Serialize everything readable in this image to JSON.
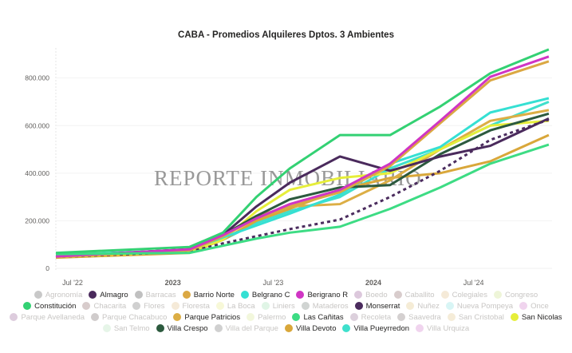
{
  "chart_data": {
    "type": "line",
    "title": "CABA - Promedios Alquileres Dptos. 3 Ambientes",
    "watermark": "REPORTE INMOBILIARIO",
    "xlabel": "",
    "ylabel": "",
    "x_unit": "months since Jan 2022",
    "x": [
      5,
      13,
      15,
      17,
      19,
      22,
      25,
      28,
      31,
      34.5
    ],
    "xlim": [
      4.9,
      34.6
    ],
    "x_ticks": [
      {
        "m": 6,
        "label": "Jul '22"
      },
      {
        "m": 12,
        "label": "2023"
      },
      {
        "m": 18,
        "label": "Jul '23"
      },
      {
        "m": 24,
        "label": "2024"
      },
      {
        "m": 30,
        "label": "Jul '24"
      }
    ],
    "ylim": [
      0,
      960000
    ],
    "y_ticks": [
      {
        "v": 0,
        "label": "0"
      },
      {
        "v": 200000,
        "label": "200.000"
      },
      {
        "v": 400000,
        "label": "400.000"
      },
      {
        "v": 600000,
        "label": "600.000"
      },
      {
        "v": 800000,
        "label": "800.000"
      }
    ],
    "grid": true,
    "legend_placement": "bottom",
    "series": [
      {
        "name": "Villa Pueyrredon",
        "color": "#3fe0cc",
        "values": [
          55000,
          78000,
          120000,
          190000,
          240000,
          300000,
          420000,
          500000,
          600000,
          700000
        ]
      },
      {
        "name": "Villa Devoto",
        "color": "#d9a73a",
        "values": [
          45000,
          65000,
          120000,
          200000,
          250000,
          330000,
          380000,
          400000,
          450000,
          560000
        ]
      },
      {
        "name": "Parque Patricios",
        "color": "#dcae45",
        "values": [
          50000,
          75000,
          140000,
          220000,
          260000,
          270000,
          370000,
          500000,
          620000,
          665000
        ]
      },
      {
        "name": "San Nicolas",
        "color": "#e6ee3a",
        "values": [
          48000,
          70000,
          120000,
          240000,
          330000,
          380000,
          400000,
          500000,
          600000,
          620000
        ]
      },
      {
        "name": "Monserrat",
        "color": "#4b2c5e",
        "dashed": true,
        "values": [
          48000,
          70000,
          105000,
          135000,
          165000,
          205000,
          300000,
          410000,
          540000,
          625000
        ]
      },
      {
        "name": "Belgrano C",
        "color": "#35e0d3",
        "values": [
          55000,
          78000,
          130000,
          180000,
          230000,
          310000,
          440000,
          510000,
          655000,
          715000
        ]
      },
      {
        "name": "Villa Crespo",
        "color": "#2c5a3e",
        "values": [
          50000,
          80000,
          140000,
          220000,
          290000,
          340000,
          350000,
          480000,
          580000,
          650000
        ]
      },
      {
        "name": "Almagro",
        "color": "#4a2a5c",
        "values": [
          50000,
          80000,
          140000,
          260000,
          360000,
          470000,
          410000,
          470000,
          515000,
          630000
        ]
      },
      {
        "name": "Barrio Norte",
        "color": "#dba843",
        "values": [
          48000,
          75000,
          135000,
          210000,
          260000,
          320000,
          430000,
          610000,
          790000,
          870000
        ]
      },
      {
        "name": "Berigrano R",
        "color": "#d035c4",
        "values": [
          50000,
          80000,
          140000,
          210000,
          270000,
          330000,
          440000,
          620000,
          805000,
          890000
        ]
      },
      {
        "name": "Las Cañitas",
        "color": "#3ddc84",
        "values": [
          60000,
          65000,
          95000,
          125000,
          150000,
          175000,
          250000,
          340000,
          440000,
          520000
        ]
      },
      {
        "name": "Constitución",
        "color": "#33d173",
        "values": [
          65000,
          90000,
          150000,
          300000,
          420000,
          560000,
          560000,
          680000,
          820000,
          920000
        ]
      }
    ]
  },
  "legend": {
    "rows": [
      [
        {
          "name": "Agronomía",
          "color": "#c8c8c8",
          "hl": false
        },
        {
          "name": "Almagro",
          "color": "#4a2a5c",
          "hl": true
        },
        {
          "name": "Barracas",
          "color": "#c0c0c0",
          "hl": false
        },
        {
          "name": "Barrio Norte",
          "color": "#dba843",
          "hl": true
        },
        {
          "name": "Belgrano C",
          "color": "#35e0d3",
          "hl": true
        },
        {
          "name": "Berigrano R",
          "color": "#d035c4",
          "hl": true
        },
        {
          "name": "Boedo",
          "color": "#dcc8dc",
          "hl": false
        },
        {
          "name": "Caballito",
          "color": "#d8cccc",
          "hl": false
        },
        {
          "name": "Colegiales",
          "color": "#f5ead8",
          "hl": false
        },
        {
          "name": "Congreso",
          "color": "#eef5d8",
          "hl": false
        }
      ],
      [
        {
          "name": "Constitución",
          "color": "#33d173",
          "hl": true
        },
        {
          "name": "Chacarita",
          "color": "#d8cccc",
          "hl": false
        },
        {
          "name": "Flores",
          "color": "#d0d0d0",
          "hl": false
        },
        {
          "name": "Floresta",
          "color": "#f5ead8",
          "hl": false
        },
        {
          "name": "La Boca",
          "color": "#f7f8d8",
          "hl": false
        },
        {
          "name": "Liniers",
          "color": "#e0f5e6",
          "hl": false
        },
        {
          "name": "Mataderos",
          "color": "#d0d4d2",
          "hl": false
        },
        {
          "name": "Monserrat",
          "color": "#4b2c5e",
          "hl": true
        },
        {
          "name": "Nuñez",
          "color": "#f5ecd6",
          "hl": false
        },
        {
          "name": "Nueva Pompeya",
          "color": "#d8f5f5",
          "hl": false
        },
        {
          "name": "Once",
          "color": "#f0d4ee",
          "hl": false
        }
      ],
      [
        {
          "name": "Parque Avellaneda",
          "color": "#ddccdd",
          "hl": false
        },
        {
          "name": "Parque Chacabuco",
          "color": "#d0cccc",
          "hl": false
        },
        {
          "name": "Parque Patricios",
          "color": "#dcae45",
          "hl": true
        },
        {
          "name": "Palermo",
          "color": "#f2f7dc",
          "hl": false
        },
        {
          "name": "Las Cañitas",
          "color": "#3ddc84",
          "hl": true
        },
        {
          "name": "Recoleta",
          "color": "#dcd0dc",
          "hl": false
        },
        {
          "name": "Saavedra",
          "color": "#d4d0d0",
          "hl": false
        },
        {
          "name": "San Cristobal",
          "color": "#f5ecd8",
          "hl": false
        },
        {
          "name": "San Nicolas",
          "color": "#e6ee3a",
          "hl": true
        }
      ],
      [
        {
          "name": "San Telmo",
          "color": "#e6f5e8",
          "hl": false
        },
        {
          "name": "Villa Crespo",
          "color": "#2c5a3e",
          "hl": true
        },
        {
          "name": "Villa del Parque",
          "color": "#d0d0d0",
          "hl": false
        },
        {
          "name": "Villa Devoto",
          "color": "#d9a73a",
          "hl": true
        },
        {
          "name": "Villa Pueyrredon",
          "color": "#3fe0cc",
          "hl": true
        },
        {
          "name": "Villa Urquiza",
          "color": "#f0d4ee",
          "hl": false
        }
      ]
    ]
  }
}
